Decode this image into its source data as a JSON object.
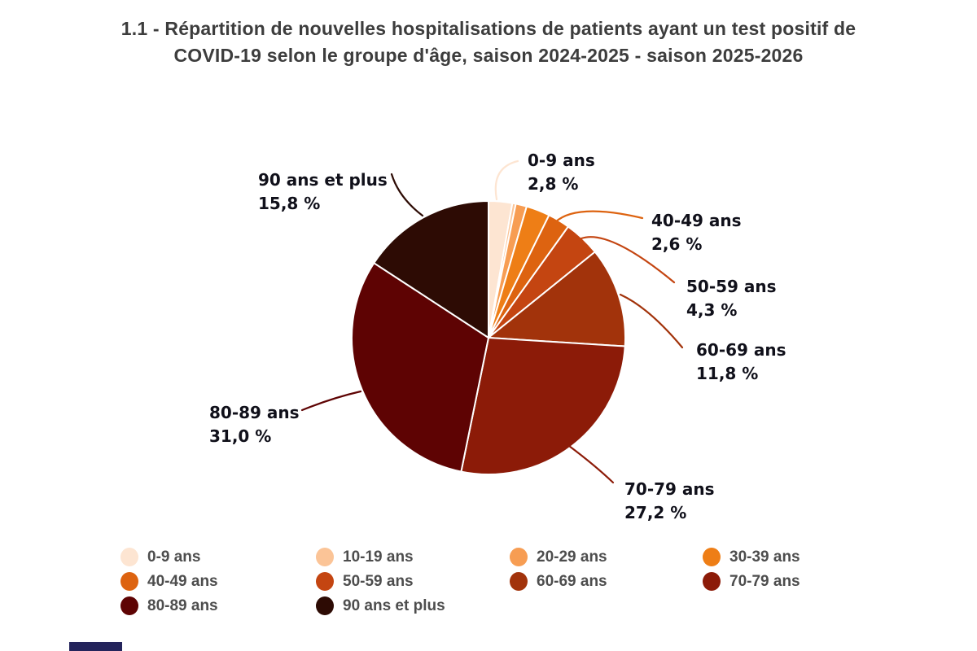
{
  "title": {
    "line1": "1.1 - Répartition de nouvelles hospitalisations de patients ayant un test positif de",
    "line2": "COVID-19 selon le groupe d'âge, saison 2024-2025 - saison 2025-2026",
    "color": "#3d3d3d"
  },
  "chart_data": {
    "type": "pie",
    "title": "1.1 - Répartition de nouvelles hospitalisations de patients ayant un test positif de COVID-19 selon le groupe d'âge, saison 2024-2025 - saison 2025-2026",
    "categories": [
      "0-9 ans",
      "10-19 ans",
      "20-29 ans",
      "30-39 ans",
      "40-49 ans",
      "50-59 ans",
      "60-69 ans",
      "70-79 ans",
      "80-89 ans",
      "90 ans et plus"
    ],
    "values": [
      2.8,
      0.4,
      1.3,
      2.8,
      2.6,
      4.3,
      11.8,
      27.2,
      31.0,
      15.8
    ],
    "unit": "%",
    "colors": [
      "#fde5d2",
      "#fbc497",
      "#f79d53",
      "#ee7e16",
      "#dd6310",
      "#c44511",
      "#a2330b",
      "#8c1b08",
      "#5e0303",
      "#2d0b04"
    ],
    "start_angle": "12 o'clock",
    "direction": "clockwise",
    "slice_border_color": "#ffffff",
    "legend_position": "bottom",
    "annotations": [
      {
        "category": "0-9 ans",
        "value_label": "2,8 %"
      },
      {
        "category": "40-49 ans",
        "value_label": "2,6 %"
      },
      {
        "category": "50-59 ans",
        "value_label": "4,3 %"
      },
      {
        "category": "60-69 ans",
        "value_label": "11,8 %"
      },
      {
        "category": "70-79 ans",
        "value_label": "27,2 %"
      },
      {
        "category": "80-89 ans",
        "value_label": "31,0 %"
      },
      {
        "category": "90 ans et plus",
        "value_label": "15,8 %"
      }
    ],
    "annotation_text_color": "#10101a",
    "legend_text_color": "#4d4d4d"
  },
  "footer": {
    "fragment_color": "#24245c"
  }
}
